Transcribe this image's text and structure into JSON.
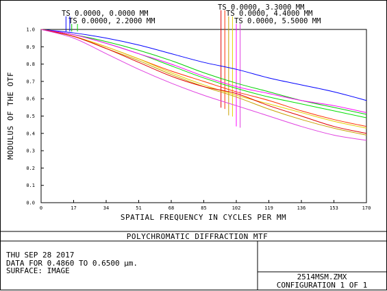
{
  "chart_data": {
    "type": "line",
    "title": "POLYCHROMATIC DIFFRACTION MTF",
    "xlabel": "SPATIAL FREQUENCY IN CYCLES PER MM",
    "ylabel": "MODULUS OF THE OTF",
    "xlim": [
      0,
      170
    ],
    "ylim": [
      0,
      1
    ],
    "xticks": [
      "0",
      "17",
      "34",
      "51",
      "68",
      "85",
      "102",
      "119",
      "136",
      "153",
      "170"
    ],
    "yticks": [
      "0.0",
      "0.1",
      "0.2",
      "0.3",
      "0.4",
      "0.5",
      "0.6",
      "0.7",
      "0.8",
      "0.9",
      "1.0"
    ],
    "grid": false,
    "legend": [
      {
        "label": "TS 0.0000, 0.0000 MM",
        "colors": [
          "#0000ff",
          "#0000ff"
        ],
        "marker_x": [
          13,
          15
        ]
      },
      {
        "label": "TS 0.0000, 2.2000 MM",
        "colors": [
          "#00c000",
          "#00e000"
        ],
        "marker_x": [
          16,
          19
        ]
      },
      {
        "label": "TS 0.0000, 3.3000 MM",
        "colors": [
          "#e00000",
          "#ff3000"
        ],
        "marker_x": [
          94,
          96
        ]
      },
      {
        "label": "TS 0.0000, 4.4000 MM",
        "colors": [
          "#c8a000",
          "#e6d000"
        ],
        "marker_x": [
          98,
          100
        ]
      },
      {
        "label": "TS 0.0000, 5.5000 MM",
        "colors": [
          "#ff00ff",
          "#e040e0"
        ],
        "marker_x": [
          102,
          104
        ]
      }
    ],
    "x": [
      0,
      17,
      34,
      51,
      68,
      85,
      102,
      119,
      136,
      153,
      170
    ],
    "series": [
      {
        "color": "#0000ff",
        "values": [
          1.0,
          0.98,
          0.95,
          0.91,
          0.86,
          0.81,
          0.77,
          0.72,
          0.68,
          0.64,
          0.59
        ]
      },
      {
        "color": "#00d000",
        "values": [
          1.0,
          0.97,
          0.93,
          0.88,
          0.82,
          0.75,
          0.69,
          0.64,
          0.59,
          0.55,
          0.51
        ]
      },
      {
        "color": "#00e000",
        "values": [
          1.0,
          0.97,
          0.92,
          0.86,
          0.79,
          0.72,
          0.66,
          0.61,
          0.57,
          0.53,
          0.49
        ]
      },
      {
        "color": "#ff00ff",
        "values": [
          1.0,
          0.97,
          0.92,
          0.86,
          0.8,
          0.73,
          0.67,
          0.63,
          0.59,
          0.56,
          0.52
        ]
      },
      {
        "color": "#ff3000",
        "values": [
          1.0,
          0.96,
          0.9,
          0.83,
          0.76,
          0.7,
          0.64,
          0.59,
          0.53,
          0.48,
          0.44
        ]
      },
      {
        "color": "#e6d000",
        "values": [
          1.0,
          0.96,
          0.9,
          0.83,
          0.75,
          0.68,
          0.62,
          0.57,
          0.52,
          0.47,
          0.43
        ]
      },
      {
        "color": "#c8a000",
        "values": [
          1.0,
          0.96,
          0.89,
          0.82,
          0.74,
          0.67,
          0.61,
          0.54,
          0.48,
          0.43,
          0.39
        ]
      },
      {
        "color": "#e00000",
        "values": [
          1.0,
          0.96,
          0.89,
          0.81,
          0.73,
          0.67,
          0.63,
          0.56,
          0.5,
          0.44,
          0.4
        ]
      },
      {
        "color": "#e040e0",
        "values": [
          1.0,
          0.95,
          0.86,
          0.77,
          0.69,
          0.62,
          0.56,
          0.5,
          0.44,
          0.39,
          0.36
        ]
      }
    ]
  },
  "info": {
    "date": "THU SEP 28 2017",
    "data_range": "DATA FOR 0.4860 TO 0.6500 µm.",
    "surface": "SURFACE: IMAGE",
    "filename": "2514MSM.ZMX",
    "configuration": "CONFIGURATION  1 OF  1"
  }
}
